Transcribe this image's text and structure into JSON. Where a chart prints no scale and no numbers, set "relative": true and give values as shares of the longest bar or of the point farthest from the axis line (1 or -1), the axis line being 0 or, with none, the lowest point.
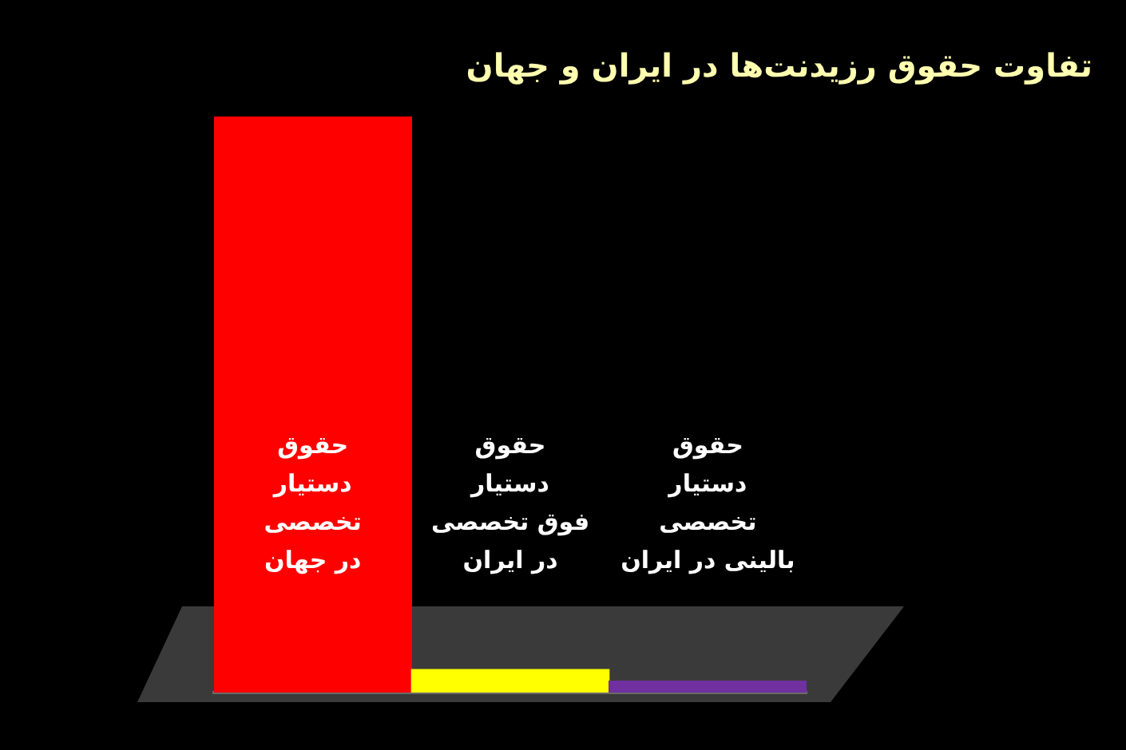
{
  "chart_data": {
    "type": "bar",
    "title": "تفاوت حقوق رزیدنت‌ها در ایران و جهان",
    "categories": [
      "حقوق\nدستیار\nتخصصی\nدر جهان",
      "حقوق\nدستیار\nفوق تخصصی\nدر ایران",
      "حقوق\nدستیار\nتخصصی\nبالینی در ایران"
    ],
    "values": [
      1,
      0.04,
      0.02
    ],
    "colors": [
      "#ff0000",
      "#ffff00",
      "#7030a0"
    ],
    "relative": true
  }
}
